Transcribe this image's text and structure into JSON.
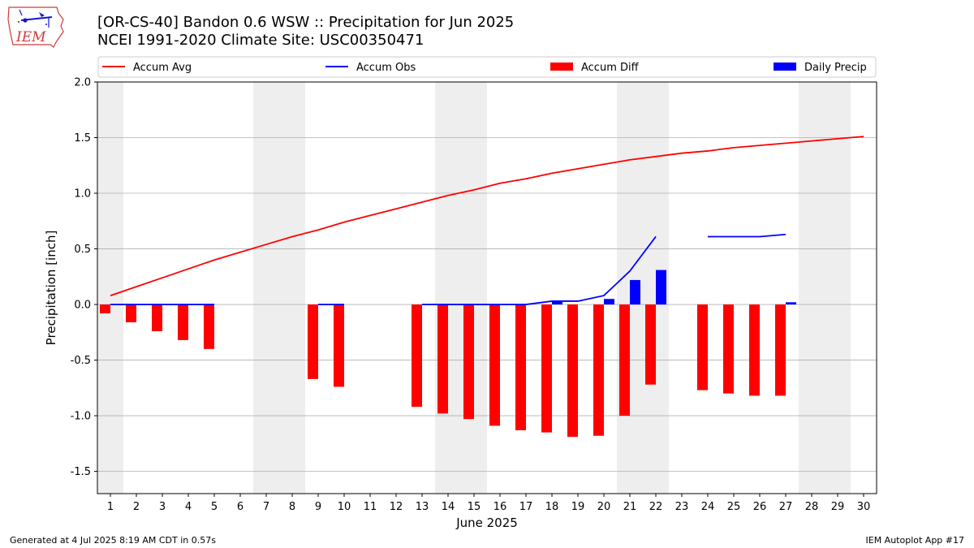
{
  "header": {
    "title_line1": "[OR-CS-40] Bandon 0.6 WSW :: Precipitation for Jun 2025",
    "title_line2": "NCEI 1991-2020 Climate Site: USC00350471",
    "logo_text": "IEM"
  },
  "footer": {
    "generated": "Generated at 4 Jul 2025 8:19 AM CDT in 0.57s",
    "app": "IEM Autoplot App #17"
  },
  "colors": {
    "avg": "#ff0000",
    "obs": "#0000ff",
    "diff": "#ff0000",
    "daily": "#0000ff",
    "weekend_shade": "#eeeeee",
    "grid": "#b0b0b0"
  },
  "chart_data": {
    "type": "bar",
    "title": "[OR-CS-40] Bandon 0.6 WSW :: Precipitation for Jun 2025",
    "subtitle": "NCEI 1991-2020 Climate Site: USC00350471",
    "xlabel": "June 2025",
    "ylabel": "Precipitation [inch]",
    "xlim": [
      0.5,
      30.5
    ],
    "ylim": [
      -1.7,
      2.0
    ],
    "grid": "horizontal",
    "legend_placement": "top",
    "x_ticks": [
      1,
      2,
      3,
      4,
      5,
      6,
      7,
      8,
      9,
      10,
      11,
      12,
      13,
      14,
      15,
      16,
      17,
      18,
      19,
      20,
      21,
      22,
      23,
      24,
      25,
      26,
      27,
      28,
      29,
      30
    ],
    "y_ticks": [
      "-1.5",
      "-1.0",
      "-0.5",
      "0.0",
      "0.5",
      "1.0",
      "1.5",
      "2.0"
    ],
    "y_tick_values": [
      -1.5,
      -1.0,
      -0.5,
      0.0,
      0.5,
      1.0,
      1.5,
      2.0
    ],
    "weekend_shading": [
      [
        0.5,
        1.5
      ],
      [
        6.5,
        8.5
      ],
      [
        13.5,
        15.5
      ],
      [
        20.5,
        22.5
      ],
      [
        27.5,
        29.5
      ]
    ],
    "legend": [
      {
        "label": "Accum Avg",
        "kind": "line",
        "color": "#ff0000"
      },
      {
        "label": "Accum Obs",
        "kind": "line",
        "color": "#0000ff"
      },
      {
        "label": "Accum Diff",
        "kind": "bar",
        "color": "#ff0000"
      },
      {
        "label": "Daily Precip",
        "kind": "bar",
        "color": "#0000ff"
      }
    ],
    "series": [
      {
        "name": "Accum Avg",
        "kind": "line",
        "color": "#ff0000",
        "points": [
          [
            1,
            0.08
          ],
          [
            2,
            0.16
          ],
          [
            3,
            0.24
          ],
          [
            4,
            0.32
          ],
          [
            5,
            0.4
          ],
          [
            6,
            0.47
          ],
          [
            7,
            0.54
          ],
          [
            8,
            0.61
          ],
          [
            9,
            0.67
          ],
          [
            10,
            0.74
          ],
          [
            11,
            0.8
          ],
          [
            12,
            0.86
          ],
          [
            13,
            0.92
          ],
          [
            14,
            0.98
          ],
          [
            15,
            1.03
          ],
          [
            16,
            1.09
          ],
          [
            17,
            1.13
          ],
          [
            18,
            1.18
          ],
          [
            19,
            1.22
          ],
          [
            20,
            1.26
          ],
          [
            21,
            1.3
          ],
          [
            22,
            1.33
          ],
          [
            23,
            1.36
          ],
          [
            24,
            1.38
          ],
          [
            25,
            1.41
          ],
          [
            26,
            1.43
          ],
          [
            27,
            1.45
          ],
          [
            28,
            1.47
          ],
          [
            29,
            1.49
          ],
          [
            30,
            1.51
          ]
        ]
      },
      {
        "name": "Accum Obs",
        "kind": "line",
        "color": "#0000ff",
        "segments": [
          [
            [
              1,
              0.0
            ],
            [
              2,
              0.0
            ],
            [
              3,
              0.0
            ],
            [
              4,
              0.0
            ],
            [
              5,
              0.0
            ]
          ],
          [
            [
              9,
              0.0
            ],
            [
              10,
              0.0
            ]
          ],
          [
            [
              13,
              0.0
            ],
            [
              14,
              0.0
            ],
            [
              15,
              0.0
            ],
            [
              16,
              0.0
            ],
            [
              17,
              0.0
            ],
            [
              18,
              0.03
            ],
            [
              19,
              0.03
            ],
            [
              20,
              0.08
            ],
            [
              21,
              0.3
            ],
            [
              22,
              0.61
            ]
          ],
          [
            [
              24,
              0.61
            ],
            [
              25,
              0.61
            ],
            [
              26,
              0.61
            ],
            [
              27,
              0.63
            ]
          ]
        ]
      },
      {
        "name": "Accum Diff",
        "kind": "bar",
        "color": "#ff0000",
        "points": [
          [
            1,
            -0.08
          ],
          [
            2,
            -0.16
          ],
          [
            3,
            -0.24
          ],
          [
            4,
            -0.32
          ],
          [
            5,
            -0.4
          ],
          [
            9,
            -0.67
          ],
          [
            10,
            -0.74
          ],
          [
            13,
            -0.92
          ],
          [
            14,
            -0.98
          ],
          [
            15,
            -1.03
          ],
          [
            16,
            -1.09
          ],
          [
            17,
            -1.13
          ],
          [
            18,
            -1.15
          ],
          [
            19,
            -1.19
          ],
          [
            20,
            -1.18
          ],
          [
            21,
            -1.0
          ],
          [
            22,
            -0.72
          ],
          [
            24,
            -0.77
          ],
          [
            25,
            -0.8
          ],
          [
            26,
            -0.82
          ],
          [
            27,
            -0.82
          ]
        ]
      },
      {
        "name": "Daily Precip",
        "kind": "bar",
        "color": "#0000ff",
        "points": [
          [
            18,
            0.03
          ],
          [
            20,
            0.05
          ],
          [
            21,
            0.22
          ],
          [
            22,
            0.31
          ],
          [
            27,
            0.02
          ]
        ]
      }
    ]
  }
}
